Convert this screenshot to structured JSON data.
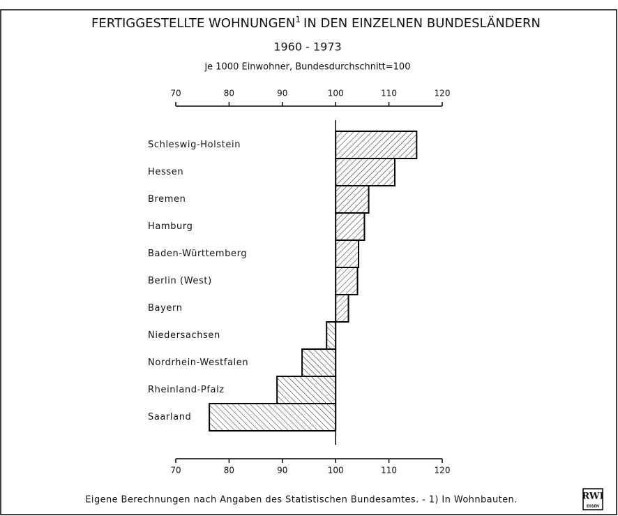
{
  "chart_data": {
    "type": "bar",
    "title": "FERTIGGESTELLTE WOHNUNGEN",
    "title_superscript": "1",
    "title_rest": "IN DEN EINZELNEN BUNDESLÄNDERN",
    "subtitle": "1960 - 1973",
    "subtitle_2": "je 1000 Einwohner, Bundesdurchschnitt=100",
    "categories": [
      "Schleswig-Holstein",
      "Hessen",
      "Bremen",
      "Hamburg",
      "Baden-Württemberg",
      "Berlin (West)",
      "Bayern",
      "Niedersachsen",
      "Nordrhein-Westfalen",
      "Rheinland-Pfalz",
      "Saarland"
    ],
    "values": [
      115.2,
      111.1,
      106.2,
      105.4,
      104.3,
      104.1,
      102.4,
      98.3,
      93.7,
      89,
      76.3
    ],
    "baseline": 100,
    "xlim": [
      70,
      120
    ],
    "xticks": [
      70,
      80,
      90,
      100,
      110,
      120
    ],
    "color": "#000000",
    "footnote": "Eigene Berechnungen nach Angaben des Statistischen Bundesamtes. - 1) In Wohnbauten.",
    "logo": "RWI",
    "logo_sub": "ESSEN"
  }
}
